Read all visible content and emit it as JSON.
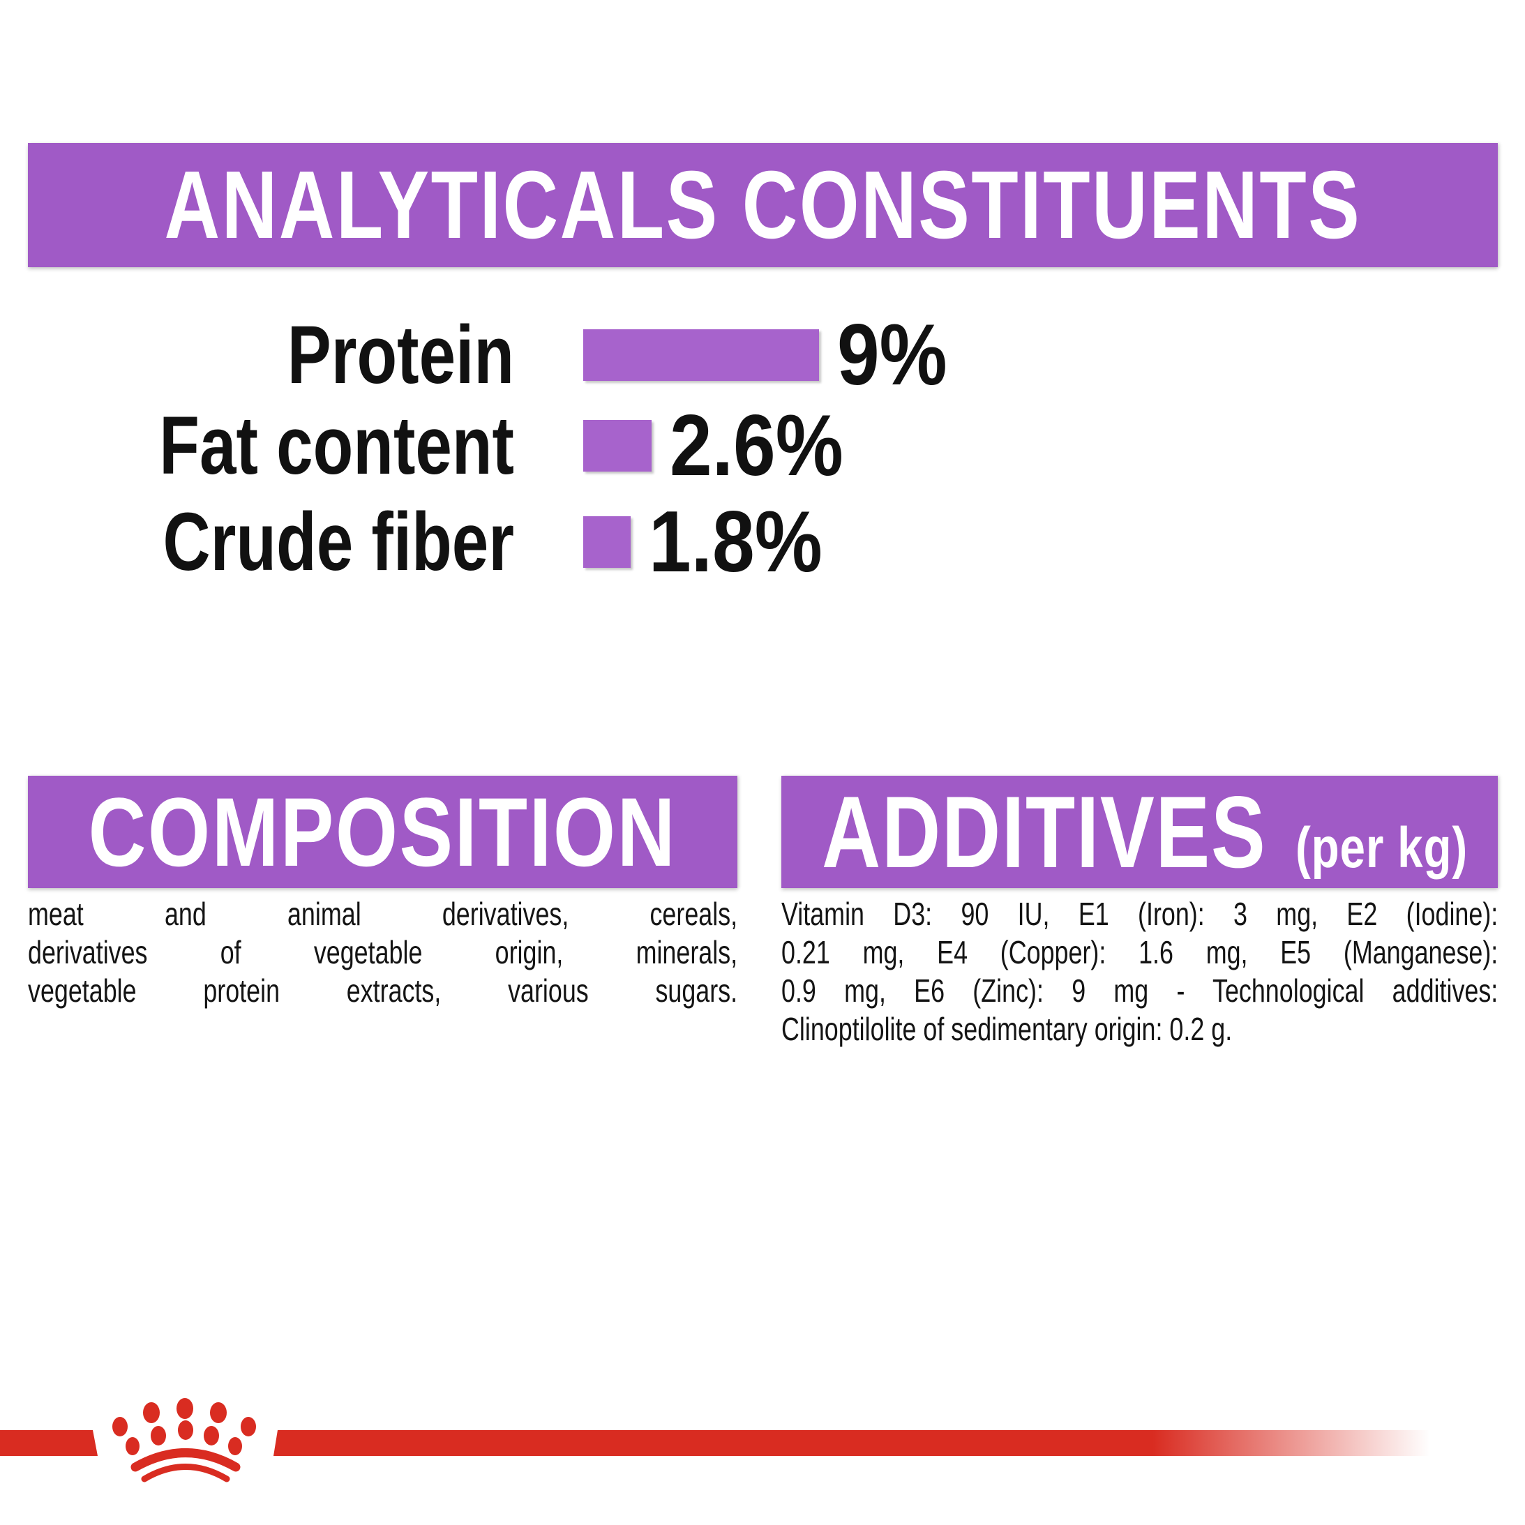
{
  "colors": {
    "banner_purple": "#A05AC6",
    "bar_purple": "#A763CC",
    "brand_red": "#D92C21",
    "text_black": "#141414",
    "background": "#ffffff"
  },
  "analyticals": {
    "title": "ANALYTICALS CONSTITUENTS",
    "rows": [
      {
        "label": "Protein",
        "value": "9%"
      },
      {
        "label": "Fat content",
        "value": "2.6%"
      },
      {
        "label": "Crude fiber",
        "value": "1.8%"
      }
    ]
  },
  "chart_data": {
    "type": "bar",
    "orientation": "horizontal",
    "title": "ANALYTICALS CONSTITUENTS",
    "categories": [
      "Protein",
      "Fat content",
      "Crude fiber"
    ],
    "values": [
      9,
      2.6,
      1.8
    ],
    "unit": "%",
    "data_labels": [
      "9%",
      "2.6%",
      "1.8%"
    ],
    "xlim": [
      0,
      9
    ],
    "grid": false,
    "bar_color": "#A763CC",
    "legend": "none"
  },
  "composition": {
    "title": "COMPOSITION",
    "lines": [
      "meat and animal derivatives, cereals,",
      "derivatives of vegetable origin, minerals,",
      "vegetable protein extracts, various sugars."
    ]
  },
  "additives": {
    "title": "ADDITIVES",
    "suffix": "(per kg)",
    "lines": [
      "Vitamin D3: 90 IU, E1 (Iron): 3 mg, E2 (Iodine):",
      "0.21 mg, E4 (Copper): 1.6 mg, E5 (Manganese):",
      "0.9 mg, E6 (Zinc): 9 mg - Technological additives:",
      "Clinoptilolite of sedimentary origin: 0.2 g."
    ]
  },
  "footer": {
    "brand_mark": "royal-canin-crown-logo"
  }
}
